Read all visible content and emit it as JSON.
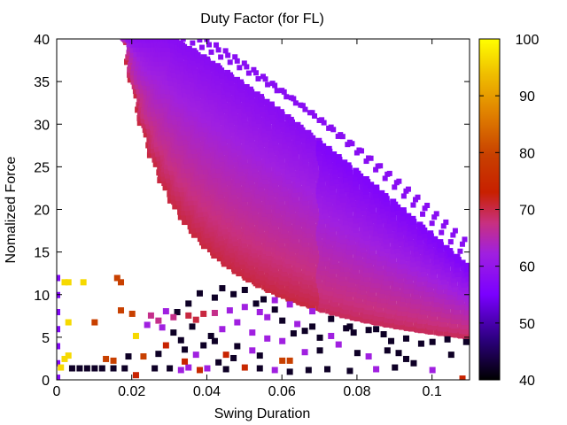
{
  "chart_data": {
    "type": "scatter",
    "title": "Duty Factor (for FL)",
    "xlabel": "Swing Duration",
    "ylabel": "Nomalized Force",
    "xlim": [
      0,
      0.11
    ],
    "ylim": [
      0,
      40
    ],
    "x_ticks": [
      {
        "value": 0,
        "label": "0"
      },
      {
        "value": 0.02,
        "label": "0.02"
      },
      {
        "value": 0.04,
        "label": "0.04"
      },
      {
        "value": 0.06,
        "label": "0.06"
      },
      {
        "value": 0.08,
        "label": "0.08"
      },
      {
        "value": 0.1,
        "label": "0.1"
      }
    ],
    "y_ticks": [
      {
        "value": 0,
        "label": "0"
      },
      {
        "value": 5,
        "label": "5"
      },
      {
        "value": 10,
        "label": "10"
      },
      {
        "value": 15,
        "label": "15"
      },
      {
        "value": 20,
        "label": "20"
      },
      {
        "value": 25,
        "label": "25"
      },
      {
        "value": 30,
        "label": "30"
      },
      {
        "value": 35,
        "label": "35"
      },
      {
        "value": 40,
        "label": "40"
      }
    ],
    "colorbar": {
      "range": [
        40,
        100
      ],
      "ticks": [
        {
          "value": 40,
          "label": "40"
        },
        {
          "value": 50,
          "label": "50"
        },
        {
          "value": 60,
          "label": "60"
        },
        {
          "value": 70,
          "label": "70"
        },
        {
          "value": 80,
          "label": "80"
        },
        {
          "value": 90,
          "label": "90"
        },
        {
          "value": 100,
          "label": "100"
        }
      ],
      "palette": [
        "#000000",
        "#2d0080",
        "#7a00ff",
        "#a020e0",
        "#c83080",
        "#c82000",
        "#c84000",
        "#e08000",
        "#f0c000",
        "#ffff00"
      ]
    },
    "grid": false,
    "legend": "none",
    "band": {
      "description_points": [
        {
          "x": 0.018,
          "y": 39.5,
          "value": 70
        },
        {
          "x": 0.04,
          "y": 16,
          "value": 70
        },
        {
          "x": 0.11,
          "y": 5,
          "value": 68
        },
        {
          "x": 0.03,
          "y": 40,
          "value": 56
        },
        {
          "x": 0.06,
          "y": 34,
          "value": 56
        },
        {
          "x": 0.11,
          "y": 14,
          "value": 56
        }
      ]
    },
    "scatter_points": [
      {
        "x": 0,
        "y": 12,
        "value": 55
      },
      {
        "x": 0,
        "y": 10,
        "value": 55
      },
      {
        "x": 0,
        "y": 8,
        "value": 55
      },
      {
        "x": 0,
        "y": 6,
        "value": 55
      },
      {
        "x": 0,
        "y": 4,
        "value": 55
      },
      {
        "x": 0,
        "y": 2,
        "value": 55
      },
      {
        "x": 0,
        "y": 0.3,
        "value": 55
      },
      {
        "x": 0.002,
        "y": 11.5,
        "value": 96
      },
      {
        "x": 0.003,
        "y": 11.5,
        "value": 96
      },
      {
        "x": 0.007,
        "y": 11.5,
        "value": 96
      },
      {
        "x": 0.003,
        "y": 6.8,
        "value": 96
      },
      {
        "x": 0.002,
        "y": 2.5,
        "value": 96
      },
      {
        "x": 0.003,
        "y": 2.9,
        "value": 96
      },
      {
        "x": 0.001,
        "y": 1.5,
        "value": 96
      },
      {
        "x": 0.01,
        "y": 6.8,
        "value": 80
      },
      {
        "x": 0.016,
        "y": 12,
        "value": 80
      },
      {
        "x": 0.017,
        "y": 11.5,
        "value": 80
      },
      {
        "x": 0.017,
        "y": 8.2,
        "value": 80
      },
      {
        "x": 0.02,
        "y": 7.8,
        "value": 80
      },
      {
        "x": 0.021,
        "y": 5.2,
        "value": 96
      },
      {
        "x": 0.013,
        "y": 2.5,
        "value": 80
      },
      {
        "x": 0.015,
        "y": 2.3,
        "value": 80
      },
      {
        "x": 0.023,
        "y": 2.8,
        "value": 80
      },
      {
        "x": 0.021,
        "y": 0.6,
        "value": 74
      },
      {
        "x": 0.004,
        "y": 1.4,
        "value": 42
      },
      {
        "x": 0.006,
        "y": 1.4,
        "value": 42
      },
      {
        "x": 0.008,
        "y": 1.4,
        "value": 42
      },
      {
        "x": 0.01,
        "y": 1.4,
        "value": 42
      },
      {
        "x": 0.012,
        "y": 1.4,
        "value": 42
      },
      {
        "x": 0.015,
        "y": 1.4,
        "value": 42
      },
      {
        "x": 0.018,
        "y": 1.4,
        "value": 42
      },
      {
        "x": 0.019,
        "y": 2.8,
        "value": 42
      },
      {
        "x": 0.026,
        "y": 1.4,
        "value": 42
      },
      {
        "x": 0.03,
        "y": 1.4,
        "value": 42
      },
      {
        "x": 0.033,
        "y": 1.2,
        "value": 60
      },
      {
        "x": 0.035,
        "y": 1.5,
        "value": 60
      },
      {
        "x": 0.038,
        "y": 1.2,
        "value": 75
      },
      {
        "x": 0.04,
        "y": 1.4,
        "value": 60
      },
      {
        "x": 0.045,
        "y": 1.3,
        "value": 42
      },
      {
        "x": 0.05,
        "y": 1.5,
        "value": 75
      },
      {
        "x": 0.054,
        "y": 1.4,
        "value": 42
      },
      {
        "x": 0.058,
        "y": 1.2,
        "value": 60
      },
      {
        "x": 0.062,
        "y": 1.0,
        "value": 42
      },
      {
        "x": 0.067,
        "y": 1.2,
        "value": 42
      },
      {
        "x": 0.072,
        "y": 1.3,
        "value": 42
      },
      {
        "x": 0.078,
        "y": 1.1,
        "value": 42
      },
      {
        "x": 0.085,
        "y": 1.3,
        "value": 60
      },
      {
        "x": 0.09,
        "y": 1.5,
        "value": 42
      },
      {
        "x": 0.095,
        "y": 2.0,
        "value": 42
      },
      {
        "x": 0.1,
        "y": 1.2,
        "value": 60
      },
      {
        "x": 0.108,
        "y": 0.2,
        "value": 74
      },
      {
        "x": 0.06,
        "y": 2.3,
        "value": 80
      },
      {
        "x": 0.062,
        "y": 2.3,
        "value": 80
      },
      {
        "x": 0.045,
        "y": 3.0,
        "value": 74
      },
      {
        "x": 0.034,
        "y": 2.2,
        "value": 74
      },
      {
        "x": 0.027,
        "y": 3.1,
        "value": 42
      },
      {
        "x": 0.029,
        "y": 4.1,
        "value": 74
      },
      {
        "x": 0.075,
        "y": 4.2,
        "value": 60
      },
      {
        "x": 0.08,
        "y": 3.2,
        "value": 42
      },
      {
        "x": 0.088,
        "y": 3.5,
        "value": 42
      },
      {
        "x": 0.093,
        "y": 2.5,
        "value": 42
      },
      {
        "x": 0.097,
        "y": 4.3,
        "value": 42
      },
      {
        "x": 0.105,
        "y": 3.0,
        "value": 42
      },
      {
        "x": 0.091,
        "y": 3.2,
        "value": 42
      },
      {
        "x": 0.083,
        "y": 2.8,
        "value": 60
      },
      {
        "x": 0.07,
        "y": 3.5,
        "value": 42
      },
      {
        "x": 0.066,
        "y": 3.3,
        "value": 60
      },
      {
        "x": 0.052,
        "y": 3.5,
        "value": 60
      },
      {
        "x": 0.048,
        "y": 4.0,
        "value": 42
      },
      {
        "x": 0.034,
        "y": 3.6,
        "value": 42
      },
      {
        "x": 0.037,
        "y": 3.0,
        "value": 60
      },
      {
        "x": 0.042,
        "y": 4.6,
        "value": 42
      },
      {
        "x": 0.056,
        "y": 4.9,
        "value": 60
      },
      {
        "x": 0.063,
        "y": 5.5,
        "value": 42
      },
      {
        "x": 0.068,
        "y": 6.3,
        "value": 42
      },
      {
        "x": 0.073,
        "y": 7.2,
        "value": 42
      },
      {
        "x": 0.078,
        "y": 6.3,
        "value": 42
      },
      {
        "x": 0.083,
        "y": 5.9,
        "value": 42
      },
      {
        "x": 0.087,
        "y": 5.4,
        "value": 42
      },
      {
        "x": 0.058,
        "y": 8.3,
        "value": 42
      },
      {
        "x": 0.053,
        "y": 9.0,
        "value": 42
      },
      {
        "x": 0.047,
        "y": 10.1,
        "value": 42
      },
      {
        "x": 0.042,
        "y": 9.7,
        "value": 42
      },
      {
        "x": 0.038,
        "y": 10.2,
        "value": 42
      },
      {
        "x": 0.035,
        "y": 9.0,
        "value": 42
      },
      {
        "x": 0.066,
        "y": 5.8,
        "value": 42
      },
      {
        "x": 0.064,
        "y": 6.6,
        "value": 60
      },
      {
        "x": 0.056,
        "y": 7.4,
        "value": 60
      },
      {
        "x": 0.048,
        "y": 6.8,
        "value": 60
      },
      {
        "x": 0.044,
        "y": 6.0,
        "value": 60
      },
      {
        "x": 0.052,
        "y": 5.6,
        "value": 60
      },
      {
        "x": 0.06,
        "y": 4.6,
        "value": 60
      },
      {
        "x": 0.054,
        "y": 2.9,
        "value": 42
      },
      {
        "x": 0.043,
        "y": 2.1,
        "value": 42
      },
      {
        "x": 0.047,
        "y": 2.6,
        "value": 42
      },
      {
        "x": 0.031,
        "y": 5.6,
        "value": 42
      },
      {
        "x": 0.033,
        "y": 4.7,
        "value": 42
      },
      {
        "x": 0.039,
        "y": 4.1,
        "value": 42
      },
      {
        "x": 0.041,
        "y": 5.2,
        "value": 42
      },
      {
        "x": 0.036,
        "y": 6.3,
        "value": 42
      },
      {
        "x": 0.032,
        "y": 8.0,
        "value": 42
      },
      {
        "x": 0.029,
        "y": 8.1,
        "value": 60
      },
      {
        "x": 0.025,
        "y": 7.6,
        "value": 66
      },
      {
        "x": 0.027,
        "y": 7.0,
        "value": 66
      },
      {
        "x": 0.031,
        "y": 7.4,
        "value": 66
      },
      {
        "x": 0.035,
        "y": 7.6,
        "value": 70
      },
      {
        "x": 0.039,
        "y": 7.8,
        "value": 70
      },
      {
        "x": 0.042,
        "y": 7.9,
        "value": 66
      },
      {
        "x": 0.028,
        "y": 6.2,
        "value": 60
      },
      {
        "x": 0.024,
        "y": 6.5,
        "value": 60
      },
      {
        "x": 0.037,
        "y": 7.1,
        "value": 70
      },
      {
        "x": 0.046,
        "y": 8.2,
        "value": 60
      },
      {
        "x": 0.05,
        "y": 8.6,
        "value": 60
      },
      {
        "x": 0.054,
        "y": 8.0,
        "value": 60
      },
      {
        "x": 0.058,
        "y": 9.4,
        "value": 60
      },
      {
        "x": 0.062,
        "y": 8.9,
        "value": 60
      },
      {
        "x": 0.068,
        "y": 8.1,
        "value": 60
      },
      {
        "x": 0.073,
        "y": 5.2,
        "value": 60
      },
      {
        "x": 0.079,
        "y": 5.6,
        "value": 42
      },
      {
        "x": 0.085,
        "y": 6.0,
        "value": 42
      },
      {
        "x": 0.089,
        "y": 4.6,
        "value": 42
      },
      {
        "x": 0.093,
        "y": 4.9,
        "value": 42
      },
      {
        "x": 0.1,
        "y": 4.5,
        "value": 42
      },
      {
        "x": 0.104,
        "y": 4.8,
        "value": 42
      },
      {
        "x": 0.109,
        "y": 4.5,
        "value": 42
      },
      {
        "x": 0.044,
        "y": 10.8,
        "value": 42
      },
      {
        "x": 0.05,
        "y": 10.6,
        "value": 42
      },
      {
        "x": 0.055,
        "y": 9.5,
        "value": 42
      },
      {
        "x": 0.06,
        "y": 7.0,
        "value": 42
      },
      {
        "x": 0.07,
        "y": 5.0,
        "value": 42
      },
      {
        "x": 0.077,
        "y": 6.1,
        "value": 42
      }
    ]
  }
}
